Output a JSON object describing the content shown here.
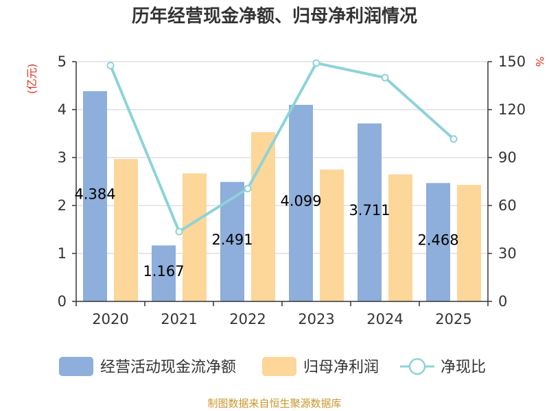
{
  "chart_data": {
    "type": "bar",
    "title": "历年经营现金净额、归母净利润情况",
    "categories": [
      "2020",
      "2021",
      "2022",
      "2023",
      "2024",
      "2025"
    ],
    "series": [
      {
        "name": "经营活动现金流净额",
        "type": "bar",
        "axis": "left",
        "color": "#8eaedb",
        "values": [
          4.384,
          1.167,
          2.491,
          4.099,
          3.711,
          2.468
        ],
        "labels_shown": true
      },
      {
        "name": "归母净利润",
        "type": "bar",
        "axis": "left",
        "color": "#fdd699",
        "values": [
          2.97,
          2.67,
          3.53,
          2.75,
          2.65,
          2.43
        ],
        "labels_shown": false
      },
      {
        "name": "净现比",
        "type": "line",
        "axis": "right",
        "color": "#8dd3d8",
        "values": [
          147.6,
          43.7,
          70.6,
          149.1,
          140.0,
          101.6
        ]
      }
    ],
    "left_axis": {
      "unit": "(亿元)",
      "min": 0,
      "max": 5,
      "ticks": [
        "0",
        "1",
        "2",
        "3",
        "4",
        "5"
      ]
    },
    "right_axis": {
      "unit": "%",
      "min": 0,
      "max": 150,
      "ticks": [
        "0",
        "30",
        "60",
        "90",
        "120",
        "150"
      ]
    },
    "grid": true,
    "legend_position": "bottom"
  },
  "footer": {
    "source": "制图数据来自恒生聚源数据库"
  }
}
